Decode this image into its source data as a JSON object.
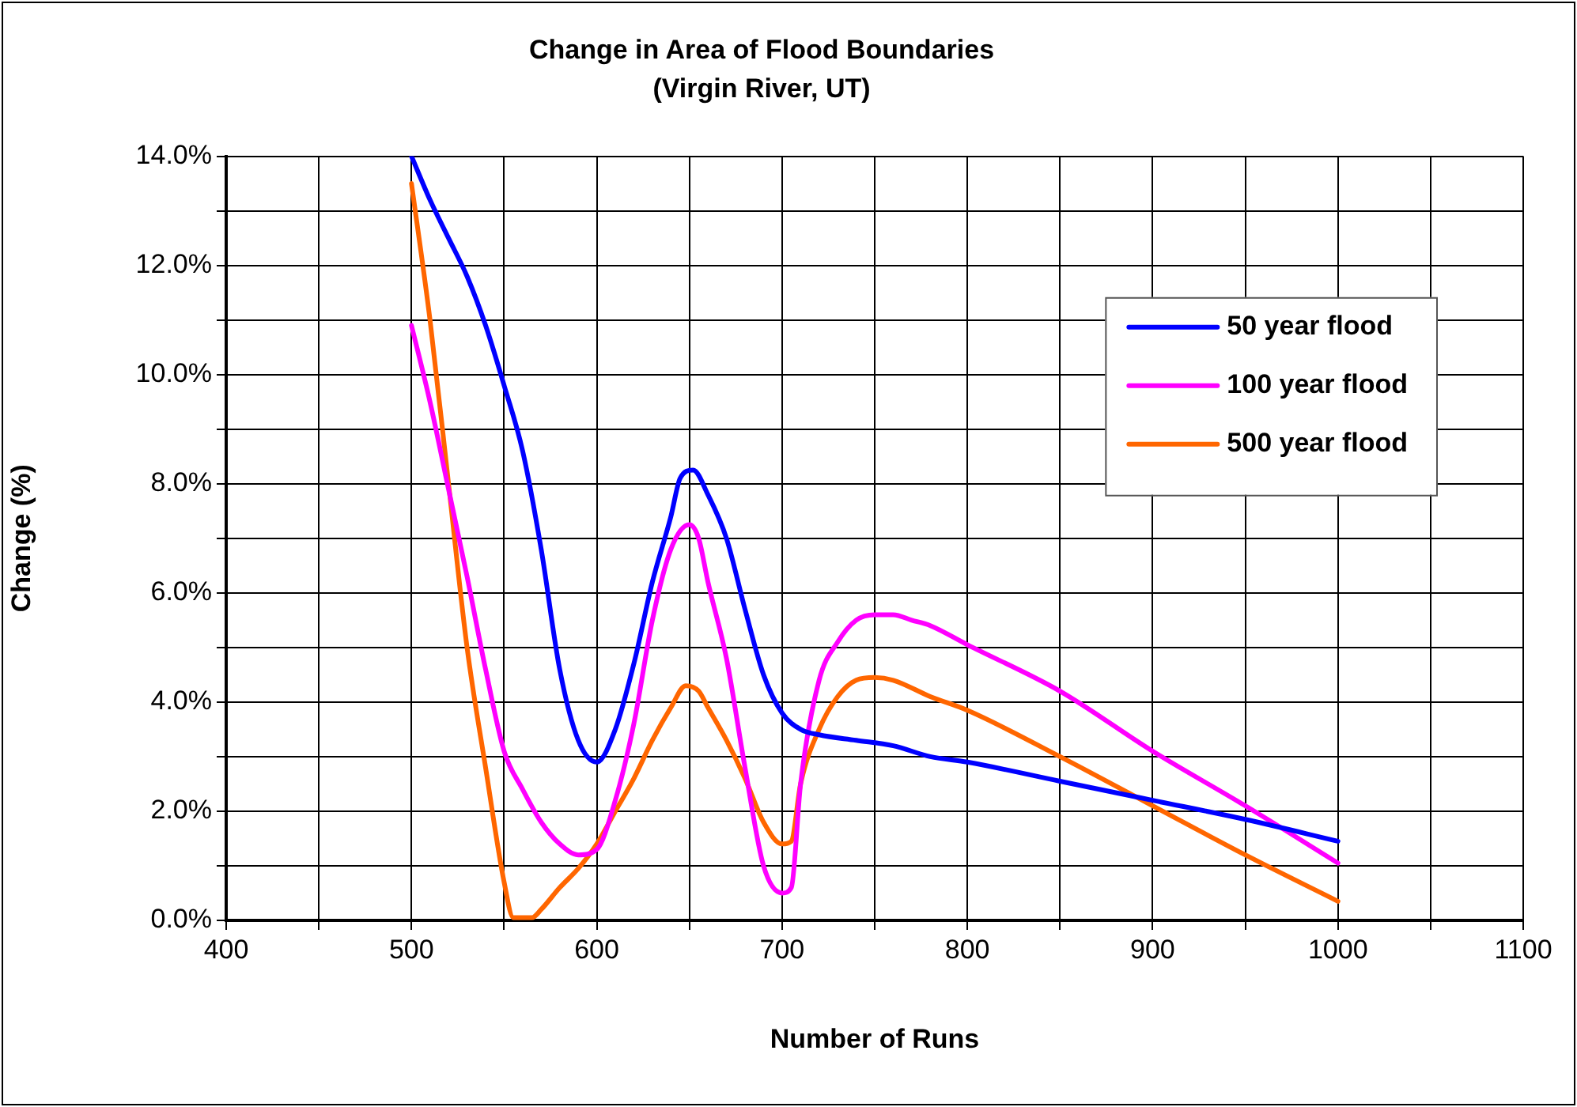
{
  "chart_data": {
    "type": "line",
    "title": "Change in Area of Flood Boundaries",
    "subtitle": "(Virgin River, UT)",
    "xlabel": "Number of Runs",
    "ylabel": "Change (%)",
    "xlim": [
      400,
      1100
    ],
    "xticks": [
      400,
      {
        "value": 450,
        "label": null
      },
      500,
      {
        "value": 550,
        "label": null
      },
      600,
      {
        "value": 650,
        "label": null
      },
      700,
      {
        "value": 750,
        "label": null
      },
      800,
      {
        "value": 850,
        "label": null
      },
      900,
      {
        "value": 950,
        "label": null
      },
      1000,
      {
        "value": 1050,
        "label": null
      },
      1100
    ],
    "ylim": [
      0,
      14
    ],
    "yticks": [
      {
        "value": 0,
        "label": "0.0%"
      },
      {
        "value": 1,
        "label": null
      },
      {
        "value": 2,
        "label": "2.0%"
      },
      {
        "value": 3,
        "label": null
      },
      {
        "value": 4,
        "label": "4.0%"
      },
      {
        "value": 5,
        "label": null
      },
      {
        "value": 6,
        "label": "6.0%"
      },
      {
        "value": 7,
        "label": null
      },
      {
        "value": 8,
        "label": "8.0%"
      },
      {
        "value": 9,
        "label": null
      },
      {
        "value": 10,
        "label": "10.0%"
      },
      {
        "value": 11,
        "label": null
      },
      {
        "value": 12,
        "label": "12.0%"
      },
      {
        "value": 13,
        "label": null
      },
      {
        "value": 14,
        "label": "14.0%"
      }
    ],
    "grid": true,
    "legend": "right",
    "marker": "none",
    "line_style": "solid",
    "series": [
      {
        "name": "50 year flood",
        "color": "#0000ff",
        "x": [
          500,
          510,
          520,
          530,
          540,
          550,
          560,
          570,
          580,
          590,
          600,
          610,
          620,
          630,
          640,
          645,
          652,
          660,
          670,
          680,
          690,
          700,
          710,
          720,
          740,
          760,
          780,
          800,
          850,
          900,
          950,
          1000
        ],
        "values": [
          14.0,
          13.2,
          12.5,
          11.8,
          10.9,
          9.8,
          8.6,
          6.8,
          4.6,
          3.3,
          2.9,
          3.5,
          4.7,
          6.2,
          7.4,
          8.1,
          8.25,
          7.8,
          7.0,
          5.7,
          4.5,
          3.8,
          3.5,
          3.4,
          3.3,
          3.2,
          3.0,
          2.9,
          2.55,
          2.2,
          1.85,
          1.45
        ]
      },
      {
        "name": "100 year flood",
        "color": "#ff00ff",
        "x": [
          500,
          510,
          520,
          530,
          540,
          550,
          560,
          570,
          580,
          590,
          600,
          610,
          620,
          630,
          640,
          650,
          655,
          660,
          670,
          680,
          690,
          700,
          705,
          710,
          720,
          730,
          740,
          750,
          760,
          770,
          780,
          800,
          850,
          900,
          950,
          1000
        ],
        "values": [
          10.9,
          9.5,
          7.9,
          6.3,
          4.6,
          3.1,
          2.4,
          1.8,
          1.4,
          1.2,
          1.3,
          2.2,
          3.6,
          5.5,
          6.8,
          7.25,
          7.0,
          6.2,
          4.8,
          2.8,
          1.0,
          0.5,
          0.6,
          2.5,
          4.4,
          5.1,
          5.5,
          5.6,
          5.6,
          5.5,
          5.4,
          5.05,
          4.2,
          3.1,
          2.1,
          1.05
        ]
      },
      {
        "name": "500 year flood",
        "color": "#ff6600",
        "x": [
          500,
          510,
          520,
          530,
          540,
          550,
          555,
          565,
          570,
          580,
          590,
          600,
          610,
          620,
          630,
          640,
          648,
          655,
          660,
          670,
          680,
          690,
          700,
          705,
          710,
          720,
          730,
          740,
          750,
          760,
          780,
          800,
          850,
          900,
          950,
          1000
        ],
        "values": [
          13.5,
          11.0,
          8.0,
          5.0,
          2.8,
          0.7,
          0.05,
          0.05,
          0.2,
          0.6,
          0.95,
          1.4,
          2.0,
          2.6,
          3.3,
          3.9,
          4.3,
          4.2,
          3.9,
          3.3,
          2.6,
          1.8,
          1.4,
          1.45,
          2.5,
          3.5,
          4.1,
          4.4,
          4.45,
          4.4,
          4.1,
          3.85,
          3.0,
          2.1,
          1.2,
          0.35
        ]
      }
    ]
  }
}
